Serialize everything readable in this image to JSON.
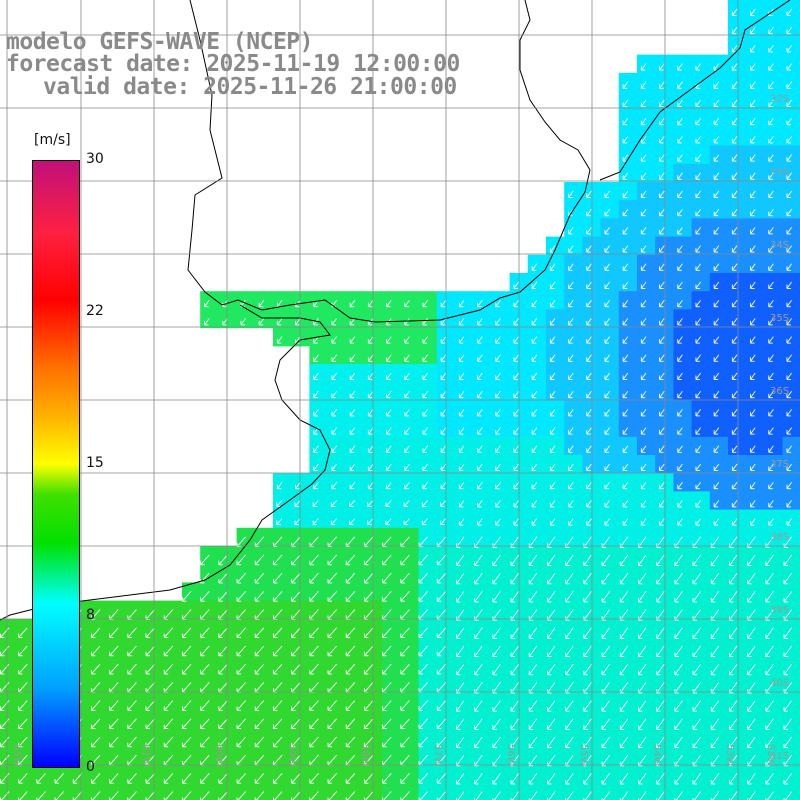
{
  "title": {
    "line1": "modelo GEFS-WAVE (NCEP)",
    "line2": "forecast date: 2025-11-19 12:00:00",
    "line3": "valid date: 2025-11-26 21:00:00"
  },
  "colorbar": {
    "unit": "[m/s]",
    "labels": [
      "30",
      "22",
      "15",
      "8",
      "0"
    ],
    "stops": [
      "#0000ff",
      "#00a0ff",
      "#00ffff",
      "#00e000",
      "#ffff00",
      "#ff7000",
      "#ff0000",
      "#c0107a"
    ]
  },
  "map": {
    "lat_labels": [
      "32S",
      "33S",
      "34S",
      "35S",
      "36S",
      "37S",
      "38S",
      "39S",
      "40S",
      "41S"
    ],
    "lon_labels": [
      "63W",
      "62W",
      "61W",
      "60W",
      "59W",
      "58W",
      "57W",
      "56W",
      "55W",
      "54W",
      "53W",
      "52W",
      "51W"
    ],
    "land_color": "#ffffff",
    "grid_color": "#888888",
    "arrow_color": "#ffffff"
  }
}
